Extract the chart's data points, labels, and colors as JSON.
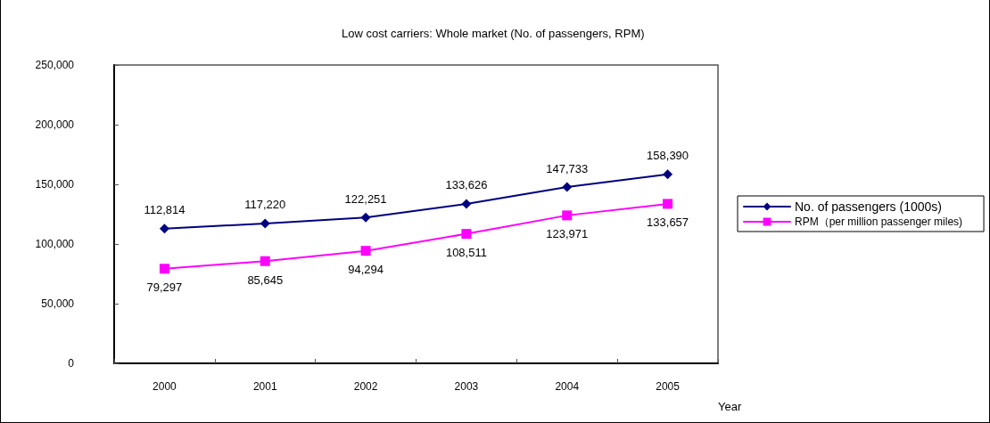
{
  "chart_data": {
    "type": "line",
    "title": "Low cost carriers: Whole market (No. of passengers, RPM)",
    "xlabel": "Year",
    "categories": [
      "2000",
      "2001",
      "2002",
      "2003",
      "2004",
      "2005"
    ],
    "series": [
      {
        "name": "No. of passengers (1000s)",
        "color": "#000080",
        "marker": "diamond",
        "values": [
          112814,
          117220,
          122251,
          133626,
          147733,
          158390
        ],
        "value_labels": [
          "112,814",
          "117,220",
          "122,251",
          "133,626",
          "147,733",
          "158,390"
        ]
      },
      {
        "name": "RPM（per million passenger miles)",
        "color": "#ff00ff",
        "marker": "square",
        "values": [
          79297,
          85645,
          94294,
          108511,
          123971,
          133657
        ],
        "value_labels": [
          "79,297",
          "85,645",
          "94,294",
          "108,511",
          "123,971",
          "133,657"
        ]
      }
    ],
    "ylim": [
      0,
      250000
    ],
    "yticks": [
      {
        "value": 0,
        "label": "0"
      },
      {
        "value": 50000,
        "label": "50,000"
      },
      {
        "value": 100000,
        "label": "100,000"
      },
      {
        "value": 150000,
        "label": "150,000"
      },
      {
        "value": 200000,
        "label": "200,000"
      },
      {
        "value": 250000,
        "label": "250,000"
      }
    ],
    "legend": "right",
    "line_style": "solid"
  }
}
